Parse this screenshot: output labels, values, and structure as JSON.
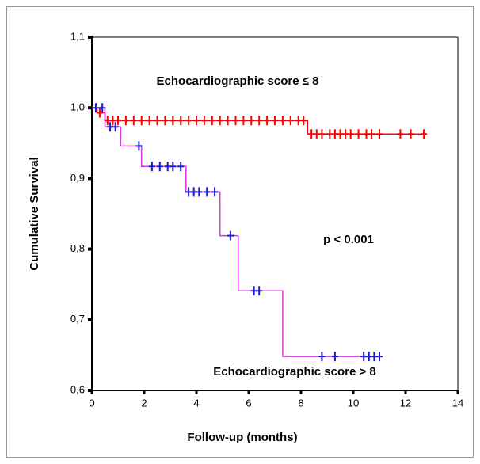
{
  "chart_data": {
    "type": "step",
    "xlabel": "Follow-up (months)",
    "ylabel": "Cumulative Survival",
    "xlim": [
      0,
      14
    ],
    "xticks": [
      0,
      2,
      4,
      6,
      8,
      10,
      12,
      14
    ],
    "ylim": [
      0.6,
      1.1
    ],
    "yticks": [
      {
        "value": 0.6,
        "label": "0,6"
      },
      {
        "value": 0.7,
        "label": "0,7"
      },
      {
        "value": 0.8,
        "label": "0,8"
      },
      {
        "value": 0.9,
        "label": "0,9"
      },
      {
        "value": 1.0,
        "label": "1,0"
      },
      {
        "value": 1.1,
        "label": "1,1"
      }
    ],
    "annotations": [
      "Echocardiographic score ≤ 8",
      "p < 0.001",
      "Echocardiographic score > 8"
    ],
    "series": [
      {
        "color": "#ff0000",
        "marker_color": "#ff0000",
        "x": [
          0,
          0.2,
          0.2,
          0.5,
          0.5,
          8.25,
          8.25,
          12.8
        ],
        "values": [
          1.0,
          1.0,
          0.993,
          0.993,
          0.982,
          0.982,
          0.963,
          0.963
        ],
        "censored_x": [
          0.3,
          0.6,
          0.8,
          1.0,
          1.3,
          1.6,
          1.9,
          2.2,
          2.5,
          2.8,
          3.1,
          3.4,
          3.7,
          4.0,
          4.3,
          4.6,
          4.9,
          5.2,
          5.5,
          5.8,
          6.1,
          6.4,
          6.7,
          7.0,
          7.3,
          7.6,
          7.9,
          8.1,
          8.4,
          8.6,
          8.8,
          9.1,
          9.3,
          9.5,
          9.7,
          9.9,
          10.2,
          10.5,
          10.7,
          11.0,
          11.8,
          12.2,
          12.7
        ],
        "censored_values": [
          0.993,
          0.982,
          0.982,
          0.982,
          0.982,
          0.982,
          0.982,
          0.982,
          0.982,
          0.982,
          0.982,
          0.982,
          0.982,
          0.982,
          0.982,
          0.982,
          0.982,
          0.982,
          0.982,
          0.982,
          0.982,
          0.982,
          0.982,
          0.982,
          0.982,
          0.982,
          0.982,
          0.982,
          0.963,
          0.963,
          0.963,
          0.963,
          0.963,
          0.963,
          0.963,
          0.963,
          0.963,
          0.963,
          0.963,
          0.963,
          0.963,
          0.963,
          0.963
        ]
      },
      {
        "color": "#d63ad6",
        "marker_color": "#1a1ad0",
        "x": [
          0,
          0.5,
          0.5,
          1.1,
          1.1,
          1.9,
          1.9,
          3.6,
          3.6,
          4.9,
          4.9,
          5.6,
          5.6,
          7.3,
          7.3,
          11.1
        ],
        "values": [
          1.0,
          1.0,
          0.973,
          0.973,
          0.946,
          0.946,
          0.917,
          0.917,
          0.881,
          0.881,
          0.819,
          0.819,
          0.741,
          0.741,
          0.648,
          0.648
        ],
        "censored_x": [
          0.15,
          0.4,
          0.7,
          0.9,
          1.8,
          2.3,
          2.6,
          2.9,
          3.1,
          3.4,
          3.7,
          3.9,
          4.1,
          4.4,
          4.7,
          5.3,
          6.2,
          6.4,
          8.8,
          9.3,
          10.4,
          10.6,
          10.8,
          11.0
        ],
        "censored_values": [
          1.0,
          1.0,
          0.973,
          0.973,
          0.946,
          0.917,
          0.917,
          0.917,
          0.917,
          0.917,
          0.881,
          0.881,
          0.881,
          0.881,
          0.881,
          0.819,
          0.741,
          0.741,
          0.648,
          0.648,
          0.648,
          0.648,
          0.648,
          0.648
        ]
      }
    ]
  }
}
